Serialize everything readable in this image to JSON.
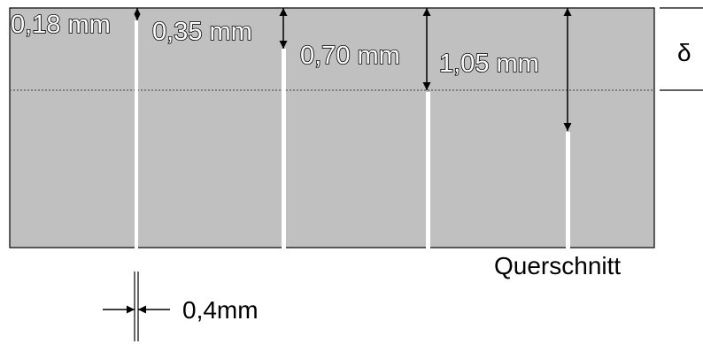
{
  "figure": {
    "depth_labels": [
      "0,18 mm",
      "0,35 mm",
      "0,70 mm",
      "1,05 mm"
    ],
    "depth_symbol": "δ",
    "caption": "Querschnitt",
    "width_label": "0,4mm"
  },
  "colors": {
    "background": "#ffffff",
    "block_fill": "#c0c0c0",
    "outline": "#000000",
    "slot": "#ffffff",
    "dotted_line": "#555555",
    "label_text": "#ffffff",
    "label_outline": "#000000"
  }
}
